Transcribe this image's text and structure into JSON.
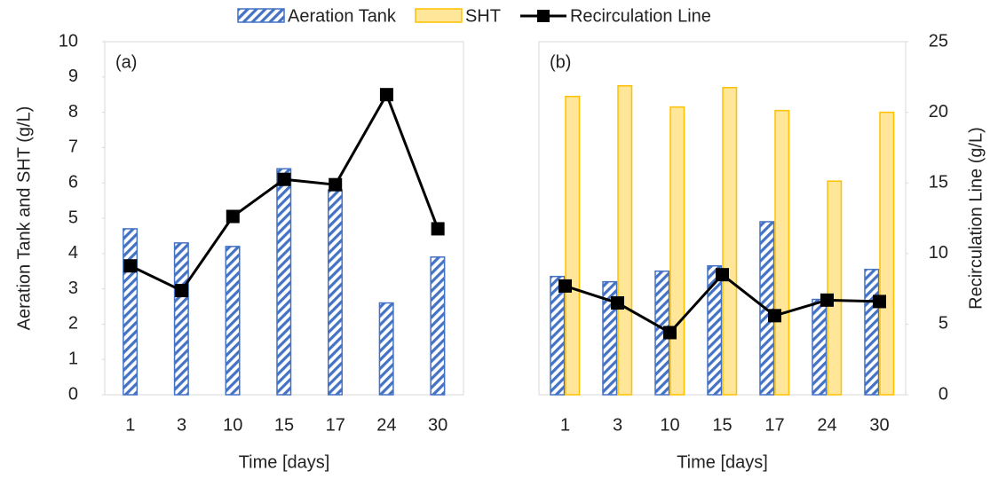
{
  "chart_data": [
    {
      "type": "bar",
      "label": "(a)",
      "xlabel": "Time [days]",
      "ylabel": "Aeration Tank and SHT (g/L)",
      "categories": [
        "1",
        "3",
        "10",
        "15",
        "17",
        "24",
        "30"
      ],
      "ylim": [
        0,
        10
      ],
      "yticks": [
        0,
        1,
        2,
        3,
        4,
        5,
        6,
        7,
        8,
        9,
        10
      ],
      "series": [
        {
          "name": "Aeration Tank",
          "type": "bar",
          "color": "#4472c4",
          "hatch": true,
          "values": [
            4.7,
            4.3,
            4.2,
            6.4,
            5.8,
            2.6,
            3.9
          ]
        },
        {
          "name": "Recirculation Line",
          "type": "line",
          "color": "#000000",
          "values": [
            3.65,
            2.95,
            5.05,
            6.1,
            5.95,
            8.5,
            4.7
          ]
        }
      ]
    },
    {
      "type": "bar",
      "label": "(b)",
      "xlabel": "Time [days]",
      "y2label": "Recirculation Line (g/L)",
      "categories": [
        "1",
        "3",
        "10",
        "15",
        "17",
        "24",
        "30"
      ],
      "ylim": [
        0,
        10
      ],
      "y2lim": [
        0,
        25
      ],
      "y2ticks": [
        0,
        5,
        10,
        15,
        20,
        25
      ],
      "series": [
        {
          "type": "bar",
          "color": "#4472c4",
          "hatch": true,
          "values": [
            3.35,
            3.2,
            3.5,
            3.65,
            4.9,
            2.7,
            3.55
          ]
        },
        {
          "name": "SHT",
          "type": "bar",
          "color": "#ffc000",
          "fill": "#ffe699",
          "values": [
            8.45,
            8.75,
            8.15,
            8.7,
            8.05,
            6.05,
            8.0
          ]
        },
        {
          "type": "line",
          "axis": "y2",
          "color": "#000000",
          "values": [
            7.7,
            6.5,
            4.4,
            8.5,
            5.6,
            6.7,
            6.6
          ]
        }
      ]
    }
  ]
}
